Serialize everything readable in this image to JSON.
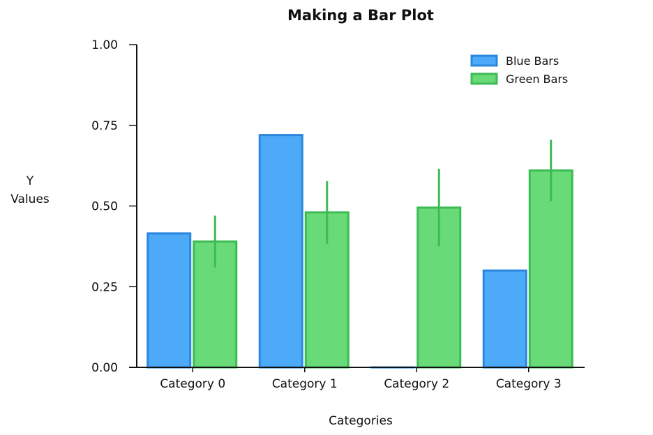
{
  "chart_data": {
    "type": "bar",
    "title": "Making a Bar Plot",
    "xlabel": "Categories",
    "ylabel_lines": [
      "Y",
      "Values"
    ],
    "categories": [
      "Category 0",
      "Category 1",
      "Category 2",
      "Category 3"
    ],
    "ylim": [
      0,
      1
    ],
    "yticks": [
      "0.00",
      "0.25",
      "0.50",
      "0.75",
      "1.00"
    ],
    "ytick_values": [
      0,
      0.25,
      0.5,
      0.75,
      1.0
    ],
    "grid": false,
    "legend_position": "top-right",
    "series": [
      {
        "name": "Blue Bars",
        "color": "#4daaf8",
        "edge_color": "#2b87dd",
        "values": [
          0.415,
          0.72,
          0.0,
          0.3
        ],
        "errors": null
      },
      {
        "name": "Green Bars",
        "color": "#68da78",
        "edge_color": "#3dbb55",
        "values": [
          0.39,
          0.48,
          0.495,
          0.61
        ],
        "errors": [
          0.08,
          0.097,
          0.12,
          0.095
        ]
      }
    ]
  }
}
